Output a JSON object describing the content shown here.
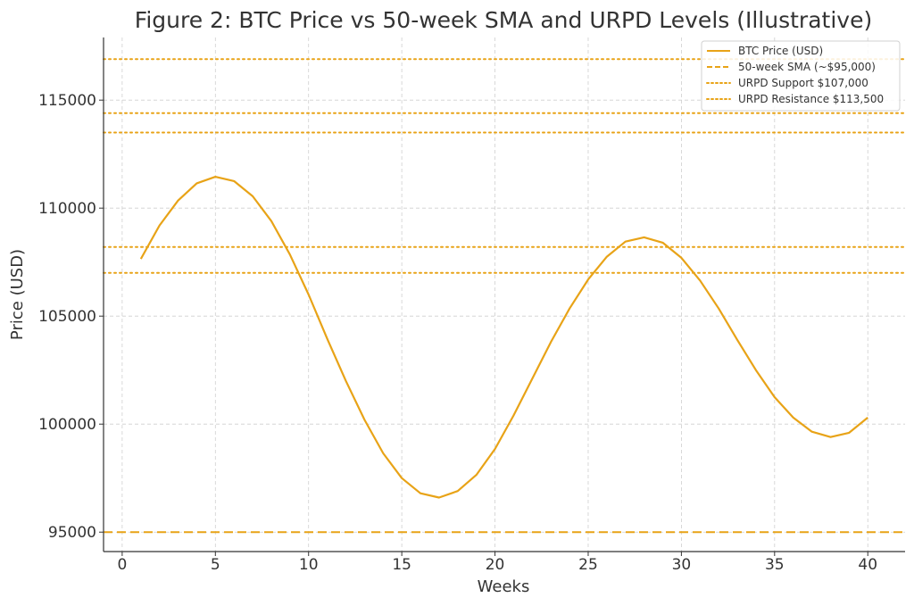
{
  "chart_data": {
    "type": "line",
    "title": "Figure 2: BTC Price vs 50-week SMA and URPD Levels (Illustrative)",
    "xlabel": "Weeks",
    "ylabel": "Price (USD)",
    "xlim": [
      -1,
      42
    ],
    "ylim": [
      94100,
      117900
    ],
    "xticks": [
      0,
      5,
      10,
      15,
      20,
      25,
      30,
      35,
      40
    ],
    "yticks": [
      95000,
      100000,
      105000,
      110000,
      115000
    ],
    "grid": true,
    "legend_position": "top-right",
    "colors": {
      "line": "#E8A317",
      "grid": "#cfcfcf",
      "axis": "#333333"
    },
    "series": [
      {
        "name": "BTC Price (USD)",
        "style": "solid",
        "x": [
          1,
          2,
          3,
          4,
          5,
          6,
          7,
          8,
          9,
          10,
          11,
          12,
          13,
          14,
          15,
          16,
          17,
          18,
          19,
          20,
          21,
          22,
          23,
          24,
          25,
          26,
          27,
          28,
          29,
          30,
          31,
          32,
          33,
          34,
          35,
          36,
          37,
          38,
          39,
          40
        ],
        "y": [
          107650,
          109200,
          110350,
          111150,
          111450,
          111250,
          110550,
          109400,
          107850,
          106000,
          103950,
          102000,
          100200,
          98650,
          97500,
          96800,
          96600,
          96900,
          97650,
          98850,
          100400,
          102100,
          103800,
          105350,
          106700,
          107750,
          108450,
          108650,
          108400,
          107700,
          106650,
          105350,
          103900,
          102500,
          101250,
          100300,
          99650,
          99400,
          99600,
          100300
        ]
      }
    ],
    "hlines": [
      {
        "name": "50-week SMA (~$95,000)",
        "y": 95000,
        "style": "dashed",
        "legend": true
      },
      {
        "name": "URPD Support $107,000",
        "y": 107000,
        "style": "dotted",
        "legend": true
      },
      {
        "name": "URPD Resistance $113,500",
        "y": 113500,
        "style": "dotted",
        "legend": true
      },
      {
        "name": "",
        "y": 108200,
        "style": "dotted",
        "legend": false
      },
      {
        "name": "",
        "y": 114400,
        "style": "dotted",
        "legend": false
      },
      {
        "name": "",
        "y": 116900,
        "style": "dotted",
        "legend": false
      }
    ],
    "legend": [
      {
        "label": "BTC Price (USD)",
        "style": "solid"
      },
      {
        "label": "50-week SMA (~$95,000)",
        "style": "dashed"
      },
      {
        "label": "URPD Support $107,000",
        "style": "dotted"
      },
      {
        "label": "URPD Resistance $113,500",
        "style": "dotted"
      }
    ]
  }
}
